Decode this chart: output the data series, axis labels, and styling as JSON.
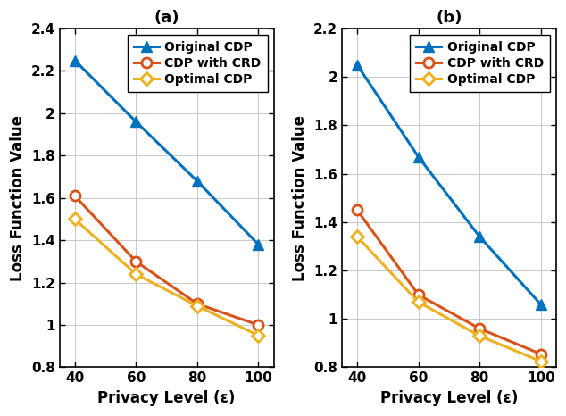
{
  "x": [
    40,
    60,
    80,
    100
  ],
  "subplot_a": {
    "title": "(a)",
    "original_cdp": [
      2.25,
      1.96,
      1.68,
      1.38
    ],
    "cdp_with_crd": [
      1.61,
      1.3,
      1.1,
      1.0
    ],
    "optimal_cdp": [
      1.5,
      1.24,
      1.09,
      0.95
    ],
    "ylim": [
      0.8,
      2.4
    ],
    "yticks": [
      0.8,
      1.0,
      1.2,
      1.4,
      1.6,
      1.8,
      2.0,
      2.2,
      2.4
    ]
  },
  "subplot_b": {
    "title": "(b)",
    "original_cdp": [
      2.05,
      1.67,
      1.34,
      1.06
    ],
    "cdp_with_crd": [
      1.45,
      1.1,
      0.96,
      0.855
    ],
    "optimal_cdp": [
      1.34,
      1.07,
      0.93,
      0.825
    ],
    "ylim": [
      0.8,
      2.2
    ],
    "yticks": [
      0.8,
      1.0,
      1.2,
      1.4,
      1.6,
      1.8,
      2.0,
      2.2
    ]
  },
  "color_blue": "#0072BD",
  "color_orange": "#D95319",
  "color_yellow": "#EDB120",
  "xlabel": "Privacy Level (ε)",
  "ylabel": "Loss Function Value",
  "legend_labels": [
    "Original CDP",
    "CDP with CRD",
    "Optimal CDP"
  ],
  "linewidth": 2.2,
  "markersize_tri": 9,
  "markersize_circle": 8,
  "markersize_diamond": 7,
  "tick_fontsize": 11,
  "label_fontsize": 12,
  "title_fontsize": 13,
  "legend_fontsize": 10
}
